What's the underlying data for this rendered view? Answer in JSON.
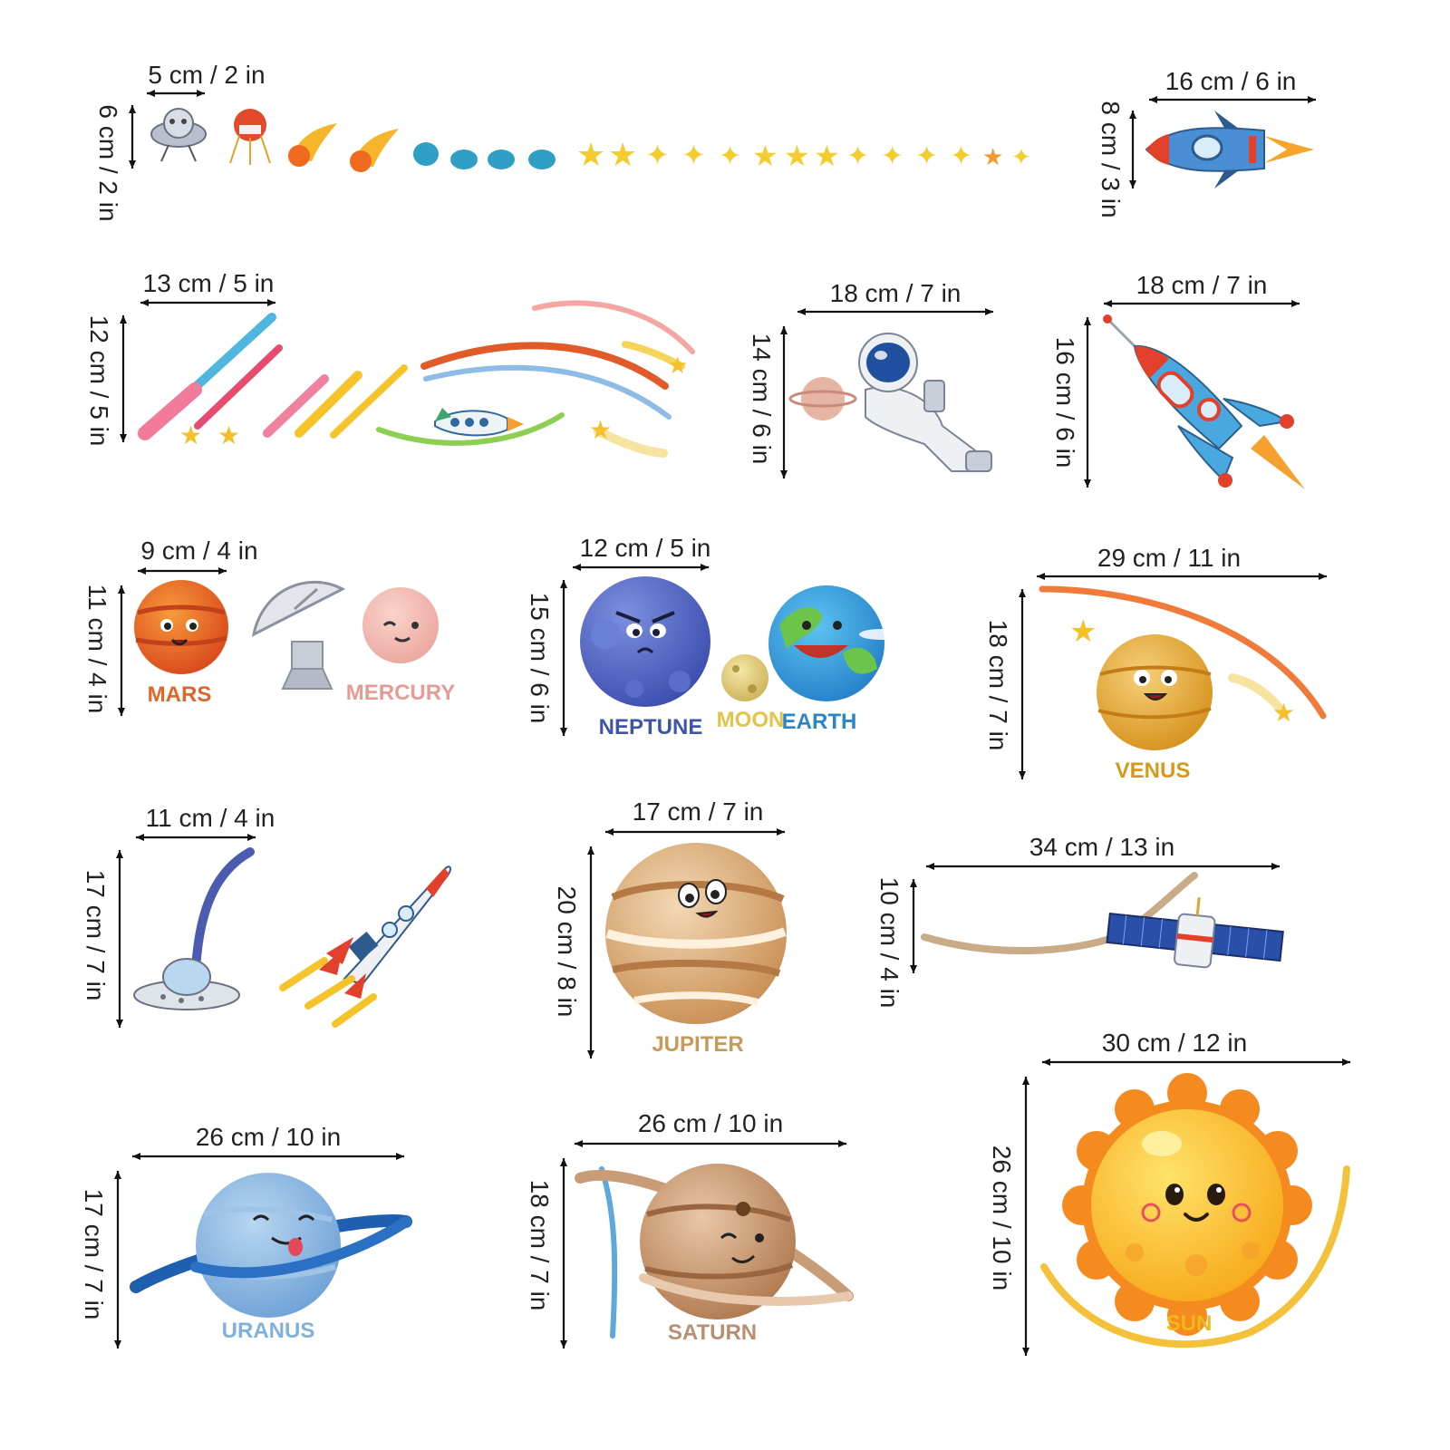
{
  "dimensions": {
    "top_small_w": "5 cm / 2 in",
    "top_small_h": "6 cm / 2 in",
    "rocket1_w": "16 cm / 6 in",
    "rocket1_h": "8 cm / 3 in",
    "meteors_w": "13 cm / 5 in",
    "meteors_h": "12 cm / 5 in",
    "astronaut_w": "18 cm / 7 in",
    "astronaut_h": "14 cm / 6 in",
    "rocket2_w": "18 cm / 7 in",
    "rocket2_h": "16 cm / 6 in",
    "mars_w": "9 cm / 4 in",
    "mars_h": "11 cm / 4 in",
    "neptune_w": "12 cm / 5 in",
    "neptune_h": "15 cm / 6 in",
    "venus_w": "29 cm / 11 in",
    "venus_h": "18 cm / 7 in",
    "ufo_w": "11 cm / 4 in",
    "ufo_h": "17 cm / 7 in",
    "jupiter_w": "17 cm / 7 in",
    "jupiter_h": "20 cm / 8 in",
    "satellite_w": "34 cm / 13 in",
    "satellite_h": "10 cm / 4 in",
    "uranus_w": "26 cm / 10 in",
    "uranus_h": "17 cm / 7 in",
    "saturn_w": "26 cm / 10 in",
    "saturn_h": "18 cm / 7 in",
    "sun_w": "30 cm / 12 in",
    "sun_h": "26 cm / 10 in"
  },
  "labels": {
    "mars": "MARS",
    "mercury": "MERCURY",
    "neptune": "NEPTUNE",
    "moon": "MOON",
    "earth": "EARTH",
    "venus": "VENUS",
    "jupiter": "JUPITER",
    "uranus": "URANUS",
    "saturn": "SATURN",
    "sun": "SUN"
  },
  "colors": {
    "mars": "#e0662a",
    "mercury": "#e89a94",
    "neptune": "#3f55a8",
    "moon": "#e3c34a",
    "earth": "#2a86c9",
    "venus": "#d69a1a",
    "jupiter": "#c79a5a",
    "uranus": "#7fb1dd",
    "saturn": "#b98e72",
    "sun": "#f0b81c"
  }
}
